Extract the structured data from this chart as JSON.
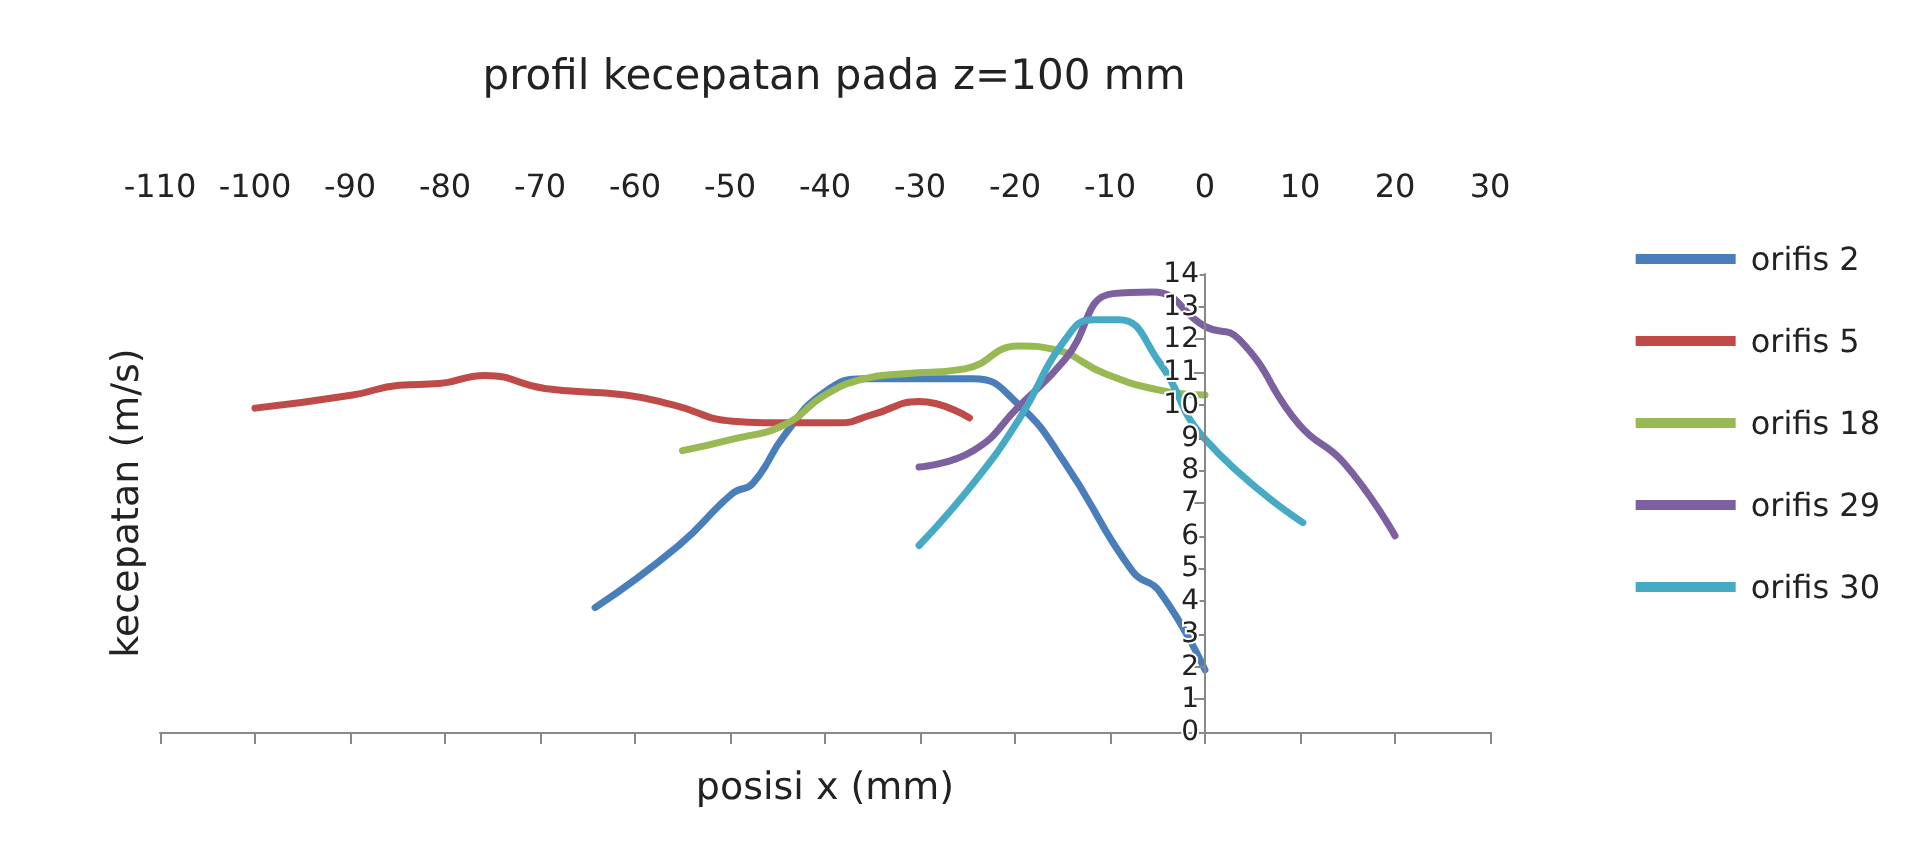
{
  "chart_data": {
    "type": "line",
    "title": "profil kecepatan pada z=100 mm",
    "xlabel": "posisi x (mm)",
    "ylabel": "kecepatan (m/s)",
    "xlim": [
      -110,
      30
    ],
    "xticks": [
      -110,
      -100,
      -90,
      -80,
      -70,
      -60,
      -50,
      -40,
      -30,
      -20,
      -10,
      0,
      10,
      20,
      30
    ],
    "ylim": [
      0,
      14
    ],
    "yticks": [
      0,
      1,
      2,
      3,
      4,
      5,
      6,
      7,
      8,
      9,
      10,
      11,
      12,
      13,
      14
    ],
    "grid": false,
    "legend": "right",
    "marker": "none",
    "line_style": "solid",
    "series": [
      {
        "name": "orifis 2",
        "color": "#4a7ebb",
        "x": [
          -64.2,
          -55.4,
          -49.7,
          -47.6,
          -44.2,
          -40,
          -35.8,
          -30.1,
          -24.4,
          -19.6,
          -14.7,
          -7.6,
          -4.8,
          0
        ],
        "values": [
          3.8,
          5.7,
          7.3,
          7.6,
          9.1,
          10.4,
          10.8,
          10.8,
          10.8,
          10.0,
          8.2,
          4.9,
          4.3,
          1.9
        ]
      },
      {
        "name": "orifis 5",
        "color": "#be4b48",
        "x": [
          -100,
          -89.7,
          -84.8,
          -80.6,
          -75.8,
          -69.5,
          -61,
          -56,
          -49.7,
          -44.8,
          -38.5,
          -35,
          -30.1,
          -24.8
        ],
        "values": [
          9.9,
          10.3,
          10.6,
          10.65,
          10.9,
          10.5,
          10.3,
          10.0,
          9.5,
          9.45,
          9.45,
          9.7,
          10.1,
          9.6
        ]
      },
      {
        "name": "orifis 18",
        "color": "#98b954",
        "x": [
          -55,
          -49.7,
          -44.2,
          -40,
          -35.8,
          -31.6,
          -25.3,
          -19.6,
          -16,
          -10.5,
          -4.8,
          0
        ],
        "values": [
          8.6,
          8.95,
          9.4,
          10.3,
          10.8,
          10.95,
          11.1,
          11.8,
          11.7,
          10.95,
          10.45,
          10.3
        ]
      },
      {
        "name": "orifis 29",
        "color": "#7d60a0",
        "x": [
          -30.1,
          -24.4,
          -19.6,
          -14.7,
          -9.7,
          -5.5,
          0,
          3.6,
          9.9,
          14.7,
          20
        ],
        "values": [
          8.1,
          8.6,
          9.95,
          11.4,
          13.4,
          13.45,
          12.4,
          12.0,
          9.4,
          8.2,
          6.0
        ]
      },
      {
        "name": "orifis 30",
        "color": "#46aac5",
        "x": [
          -30.1,
          -24.4,
          -19.6,
          -14.7,
          -11.8,
          -9.1,
          -4.8,
          0,
          10.3
        ],
        "values": [
          5.7,
          7.6,
          9.55,
          12.0,
          12.6,
          12.6,
          11.3,
          8.95,
          6.4
        ]
      }
    ]
  }
}
